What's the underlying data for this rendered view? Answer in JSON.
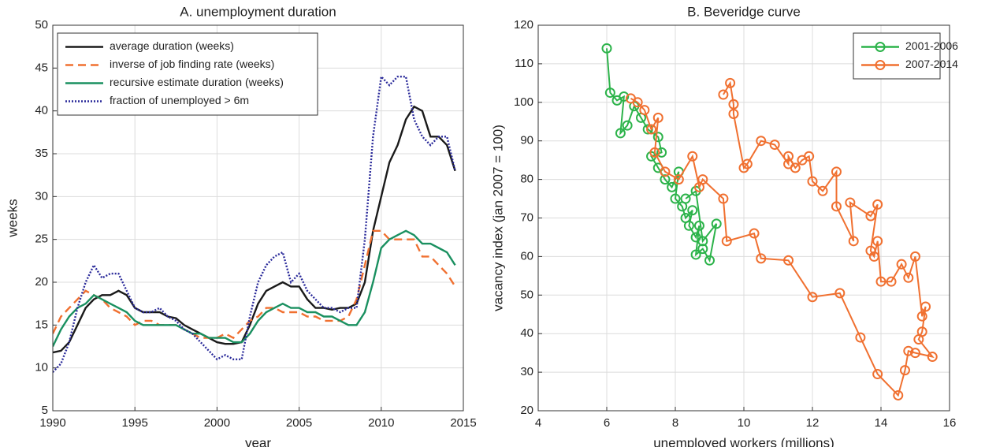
{
  "chart_data": [
    {
      "type": "line",
      "title": "A. unemployment duration",
      "xlabel": "year",
      "ylabel": "weeks",
      "xlim": [
        1990,
        2015
      ],
      "xticks": [
        1990,
        1995,
        2000,
        2005,
        2010,
        2015
      ],
      "ylim": [
        5,
        50
      ],
      "yticks": [
        5,
        10,
        15,
        20,
        25,
        30,
        35,
        40,
        45,
        50
      ],
      "grid": true,
      "legend": "upper left",
      "x": [
        1990,
        1990.5,
        1991,
        1991.5,
        1992,
        1992.5,
        1993,
        1993.5,
        1994,
        1994.5,
        1995,
        1995.5,
        1996,
        1996.5,
        1997,
        1997.5,
        1998,
        1998.5,
        1999,
        1999.5,
        2000,
        2000.5,
        2001,
        2001.5,
        2002,
        2002.5,
        2003,
        2003.5,
        2004,
        2004.5,
        2005,
        2005.5,
        2006,
        2006.5,
        2007,
        2007.5,
        2008,
        2008.5,
        2009,
        2009.5,
        2010,
        2010.5,
        2011,
        2011.5,
        2012,
        2012.5,
        2013,
        2013.5,
        2014,
        2014.5
      ],
      "series": [
        {
          "name": "average duration (weeks)",
          "color": "#1a1a1a",
          "linestyle": "solid",
          "values": [
            11.8,
            12,
            13,
            15,
            17,
            18,
            18.5,
            18.5,
            19,
            18.5,
            17,
            16.5,
            16.5,
            16.5,
            16,
            15.8,
            15,
            14.5,
            14,
            13.5,
            13,
            12.8,
            12.8,
            13,
            15,
            17.5,
            19,
            19.5,
            20,
            19.5,
            19.5,
            18,
            17,
            17,
            16.8,
            17,
            17,
            17.5,
            20,
            26,
            30,
            34,
            36,
            39,
            40.5,
            40,
            37,
            37,
            36,
            33
          ]
        },
        {
          "name": "inverse of job finding rate (weeks)",
          "color": "#f07030",
          "linestyle": "dashed",
          "values": [
            14,
            16,
            17,
            18,
            19,
            18.5,
            18,
            17,
            16.5,
            16,
            15,
            15.5,
            15.5,
            15,
            15,
            15,
            14.5,
            14,
            13.5,
            13.5,
            13.5,
            14,
            13.5,
            14.5,
            15.5,
            16,
            17,
            17,
            16.5,
            16.5,
            16.5,
            16,
            16,
            15.5,
            15.5,
            15.5,
            16,
            18,
            22,
            26,
            26,
            25,
            25,
            25,
            25,
            23,
            23,
            22,
            21,
            19.5
          ]
        },
        {
          "name": "recursive estimate duration (weeks)",
          "color": "#1a9060",
          "linestyle": "solid",
          "values": [
            12.5,
            14.5,
            16,
            17,
            17.5,
            18.5,
            18,
            17.5,
            17,
            16.5,
            15.5,
            15,
            15,
            15,
            15,
            15,
            14.5,
            14,
            14,
            13.5,
            13.5,
            13.5,
            13,
            13,
            14,
            15.5,
            16.5,
            17,
            17.5,
            17,
            17,
            16.5,
            16.5,
            16,
            16,
            15.5,
            15,
            15,
            16.5,
            20,
            24,
            25,
            25.5,
            26,
            25.5,
            24.5,
            24.5,
            24,
            23.5,
            22
          ]
        },
        {
          "name": "fraction of unemployed > 6m",
          "color": "#2a2a9a",
          "linestyle": "dotted",
          "values": [
            9.5,
            10.5,
            13,
            17,
            20,
            22,
            20.5,
            21,
            21,
            19,
            17,
            16.5,
            16.5,
            17,
            16,
            15.5,
            14.5,
            14,
            13,
            12,
            11,
            11.5,
            11,
            11,
            16,
            20,
            22,
            23,
            23.5,
            20,
            21,
            19,
            18,
            17,
            17,
            16.5,
            17,
            17,
            25,
            37,
            44,
            43,
            44,
            44,
            39,
            37,
            36,
            37,
            37,
            33
          ]
        }
      ]
    },
    {
      "type": "scatter",
      "title": "B. Beveridge curve",
      "xlabel": "unemployed workers (millions)",
      "ylabel": "vacancy index (jan 2007 = 100)",
      "xlim": [
        4,
        16
      ],
      "xticks": [
        4,
        6,
        8,
        10,
        12,
        14,
        16
      ],
      "ylim": [
        20,
        120
      ],
      "yticks": [
        20,
        30,
        40,
        50,
        60,
        70,
        80,
        90,
        100,
        110,
        120
      ],
      "grid": true,
      "legend": "upper right",
      "connect": true,
      "series": [
        {
          "name": "2001-2006",
          "color": "#2cb34a",
          "x": [
            6,
            6.1,
            6.3,
            6.5,
            6.4,
            6.6,
            6.8,
            7,
            7.2,
            7.5,
            7.6,
            7.3,
            7.5,
            7.7,
            7.9,
            8.1,
            8,
            8.2,
            8.3,
            8.5,
            8.4,
            8.6,
            8.7,
            8.6,
            8.8,
            9,
            9.2,
            8.8,
            8.6,
            8.3
          ],
          "values": [
            114,
            102.5,
            100.5,
            101.5,
            92,
            94,
            99,
            96,
            93,
            91,
            87,
            86,
            83,
            80,
            78,
            82,
            75,
            73,
            70,
            72,
            68,
            65,
            68,
            60.5,
            62,
            59,
            68.5,
            64,
            77,
            75
          ]
        },
        {
          "name": "2007-2014",
          "color": "#f07030",
          "x": [
            6.7,
            6.9,
            7.1,
            7.3,
            7.5,
            7.4,
            7.7,
            8.1,
            8.5,
            8.7,
            8.8,
            9.4,
            9.5,
            10.3,
            10.5,
            11.3,
            12,
            12.8,
            13.4,
            13.9,
            14.5,
            14.7,
            14.8,
            15,
            15.5,
            15.1,
            15.2,
            15.3,
            15.2,
            15,
            14.8,
            14.6,
            14.3,
            14,
            13.9,
            13.8,
            13.7,
            13.9,
            13.7,
            13.1,
            13.2,
            12.7,
            12.7,
            12.3,
            12,
            11.9,
            11.7,
            11.5,
            11.3,
            11.3,
            10.9,
            10.5,
            10.1,
            10,
            9.7,
            9.7,
            9.6,
            9.4
          ],
          "values": [
            101,
            100,
            98,
            93,
            96,
            87,
            82,
            80,
            86,
            78,
            80,
            75,
            64,
            66,
            59.5,
            59,
            49.5,
            50.5,
            39,
            29.5,
            24,
            30.5,
            35.5,
            35,
            34,
            38.5,
            40.5,
            47,
            44.5,
            60,
            54.5,
            58,
            53.5,
            53.5,
            64,
            60,
            61.5,
            73.5,
            70.5,
            74,
            64,
            73,
            82,
            77,
            79.5,
            86,
            85,
            83,
            86,
            84,
            89,
            90,
            84,
            83,
            97,
            99.5,
            105,
            102
          ]
        }
      ]
    }
  ]
}
